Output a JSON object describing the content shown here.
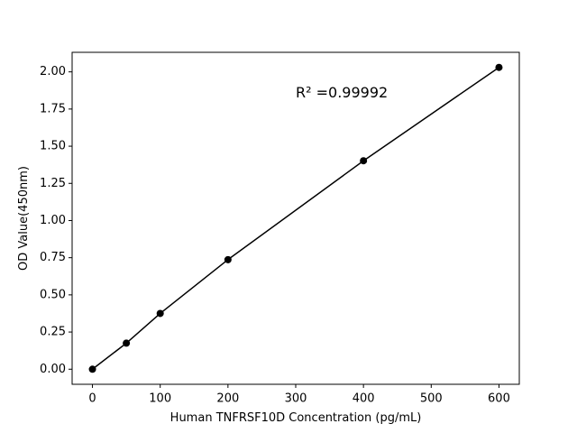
{
  "chart_data": {
    "type": "line",
    "x_label": "Human TNFRSF10D Concentration (pg/mL)",
    "y_label": "OD Value(450nm)",
    "annotation": "R² =0.99992",
    "x": [
      0,
      50,
      100,
      200,
      400,
      600
    ],
    "series": [
      {
        "color": "#000000",
        "values": [
          0,
          0.175,
          0.375,
          0.737,
          1.402,
          2.03
        ]
      }
    ],
    "xlim": [
      -30,
      630
    ],
    "xticks": [
      0,
      100,
      200,
      300,
      400,
      500,
      600
    ],
    "ylim": [
      -0.1015,
      2.1315
    ],
    "yticks": [
      {
        "value": 0,
        "label": "0.00"
      },
      {
        "value": 0.25,
        "label": "0.25"
      },
      {
        "value": 0.5,
        "label": "0.50"
      },
      {
        "value": 0.75,
        "label": "0.75"
      },
      {
        "value": 1,
        "label": "1.00"
      },
      {
        "value": 1.25,
        "label": "1.25"
      },
      {
        "value": 1.5,
        "label": "1.50"
      },
      {
        "value": 1.75,
        "label": "1.75"
      },
      {
        "value": 2,
        "label": "2.00"
      }
    ]
  }
}
